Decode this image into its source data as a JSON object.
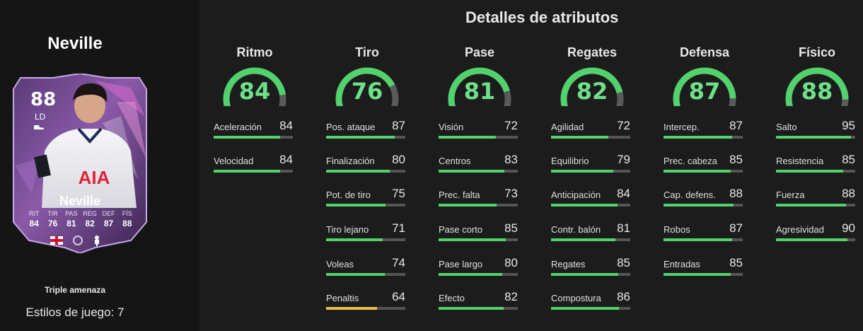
{
  "player": {
    "name": "Neville",
    "card": {
      "rating": "88",
      "position": "LD",
      "name": "Neville",
      "stats": [
        {
          "label": "RIT",
          "value": "84"
        },
        {
          "label": "TIR",
          "value": "76"
        },
        {
          "label": "PAS",
          "value": "81"
        },
        {
          "label": "REG",
          "value": "82"
        },
        {
          "label": "DEF",
          "value": "87"
        },
        {
          "label": "FÍS",
          "value": "88"
        }
      ]
    },
    "playstyle": "Triple amenaza",
    "playstyles_count": "Estilos de juego: 7"
  },
  "section_title": "Detalles de atributos",
  "colors": {
    "accent_green": "#52d16c",
    "gauge_track": "#5a5a5a",
    "low_bar_yellow": "#e4c04a"
  },
  "categories": [
    {
      "name": "Ritmo",
      "value": 84,
      "attributes": [
        {
          "label": "Aceleración",
          "value": 84
        },
        {
          "label": "Velocidad",
          "value": 84
        }
      ]
    },
    {
      "name": "Tiro",
      "value": 76,
      "attributes": [
        {
          "label": "Pos. ataque",
          "value": 87
        },
        {
          "label": "Finalización",
          "value": 80
        },
        {
          "label": "Pot. de tiro",
          "value": 75
        },
        {
          "label": "Tiro lejano",
          "value": 71
        },
        {
          "label": "Voleas",
          "value": 74
        },
        {
          "label": "Penaltis",
          "value": 64
        }
      ]
    },
    {
      "name": "Pase",
      "value": 81,
      "attributes": [
        {
          "label": "Visión",
          "value": 72
        },
        {
          "label": "Centros",
          "value": 83
        },
        {
          "label": "Prec. falta",
          "value": 73
        },
        {
          "label": "Pase corto",
          "value": 85
        },
        {
          "label": "Pase largo",
          "value": 80
        },
        {
          "label": "Efecto",
          "value": 82
        }
      ]
    },
    {
      "name": "Regates",
      "value": 82,
      "attributes": [
        {
          "label": "Agilidad",
          "value": 72
        },
        {
          "label": "Equilibrio",
          "value": 79
        },
        {
          "label": "Anticipación",
          "value": 84
        },
        {
          "label": "Contr. balón",
          "value": 81
        },
        {
          "label": "Regates",
          "value": 85
        },
        {
          "label": "Compostura",
          "value": 86
        }
      ]
    },
    {
      "name": "Defensa",
      "value": 87,
      "attributes": [
        {
          "label": "Intercep.",
          "value": 87
        },
        {
          "label": "Prec. cabeza",
          "value": 85
        },
        {
          "label": "Cap. defens.",
          "value": 88
        },
        {
          "label": "Robos",
          "value": 87
        },
        {
          "label": "Entradas",
          "value": 85
        }
      ]
    },
    {
      "name": "Físico",
      "value": 88,
      "attributes": [
        {
          "label": "Salto",
          "value": 95
        },
        {
          "label": "Resistencia",
          "value": 85
        },
        {
          "label": "Fuerza",
          "value": 88
        },
        {
          "label": "Agresividad",
          "value": 90
        }
      ]
    }
  ]
}
